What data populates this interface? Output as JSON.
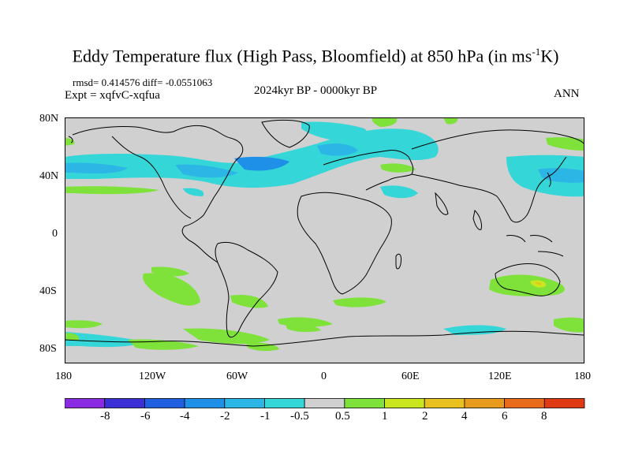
{
  "title": {
    "text_before": "Eddy Temperature flux (High Pass, Bloomfield) at 850 hPa (in ms",
    "superscript": "-1",
    "text_after": "K)"
  },
  "stats_line": "rmsd= 0.414576 diff= -0.0551063",
  "experiment": "Expt = xqfvC-xqfua",
  "period": "2024kyr BP - 0000kyr BP",
  "season": "ANN",
  "axes": {
    "lat_labels": [
      "80N",
      "40N",
      "0",
      "40S",
      "80S"
    ],
    "lon_labels": [
      "180",
      "120W",
      "60W",
      "0",
      "60E",
      "120E",
      "180"
    ]
  },
  "colorbar": {
    "labels": [
      "-8",
      "-6",
      "-4",
      "-2",
      "-1",
      "-0.5",
      "0.5",
      "1",
      "2",
      "4",
      "6",
      "8"
    ],
    "colors": [
      "#8a2be2",
      "#3b2fd6",
      "#1f5fe0",
      "#1e90e8",
      "#2bb6e6",
      "#35d6d8",
      "#d0d0d0",
      "#7ee23a",
      "#c9e61f",
      "#e8c020",
      "#e89a1c",
      "#e86a1a",
      "#e03a14"
    ]
  },
  "colors": {
    "land_bg": "#d0d0d0",
    "coast": "#000000"
  }
}
